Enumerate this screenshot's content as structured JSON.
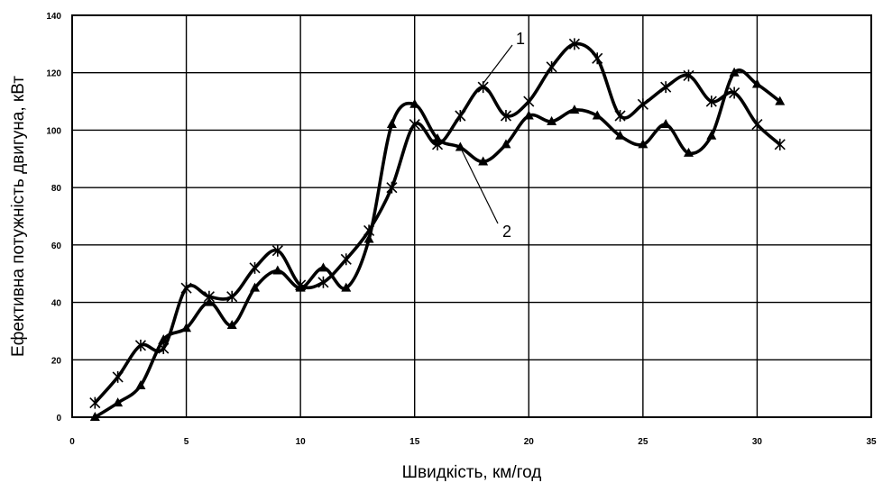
{
  "chart_data": {
    "type": "line",
    "xlabel": "Швидкість, км/год",
    "ylabel": "Ефективна потужність двигуна, кВт",
    "xlim": [
      0,
      35
    ],
    "ylim": [
      0,
      140
    ],
    "x_ticks": [
      0,
      5,
      10,
      15,
      20,
      25,
      30,
      35
    ],
    "y_ticks": [
      0,
      20,
      40,
      60,
      80,
      100,
      120,
      140
    ],
    "grid": true,
    "legend": "none",
    "series": [
      {
        "name": "1",
        "marker": "star",
        "x": [
          1,
          2,
          3,
          4,
          5,
          6,
          7,
          8,
          9,
          10,
          11,
          12,
          13,
          14,
          15,
          16,
          17,
          18,
          19,
          20,
          21,
          22,
          23,
          24,
          25,
          26,
          27,
          28,
          29,
          30,
          31
        ],
        "values": [
          5,
          14,
          25,
          24,
          45,
          42,
          42,
          52,
          58,
          46,
          47,
          55,
          65,
          80,
          102,
          95,
          105,
          115,
          105,
          110,
          122,
          130,
          125,
          105,
          109,
          115,
          119,
          110,
          113,
          102,
          95
        ]
      },
      {
        "name": "2",
        "marker": "triangle",
        "x": [
          1,
          2,
          3,
          4,
          5,
          6,
          7,
          8,
          9,
          10,
          11,
          12,
          13,
          14,
          15,
          16,
          17,
          18,
          19,
          20,
          21,
          22,
          23,
          24,
          25,
          26,
          27,
          28,
          29,
          30,
          31
        ],
        "values": [
          0,
          5,
          11,
          27,
          31,
          40,
          32,
          45,
          51,
          45,
          52,
          45,
          62,
          102,
          109,
          97,
          94,
          89,
          95,
          105,
          103,
          107,
          105,
          98,
          95,
          102,
          92,
          98,
          120,
          116,
          110
        ]
      }
    ],
    "annotations": [
      "1",
      "2"
    ]
  }
}
